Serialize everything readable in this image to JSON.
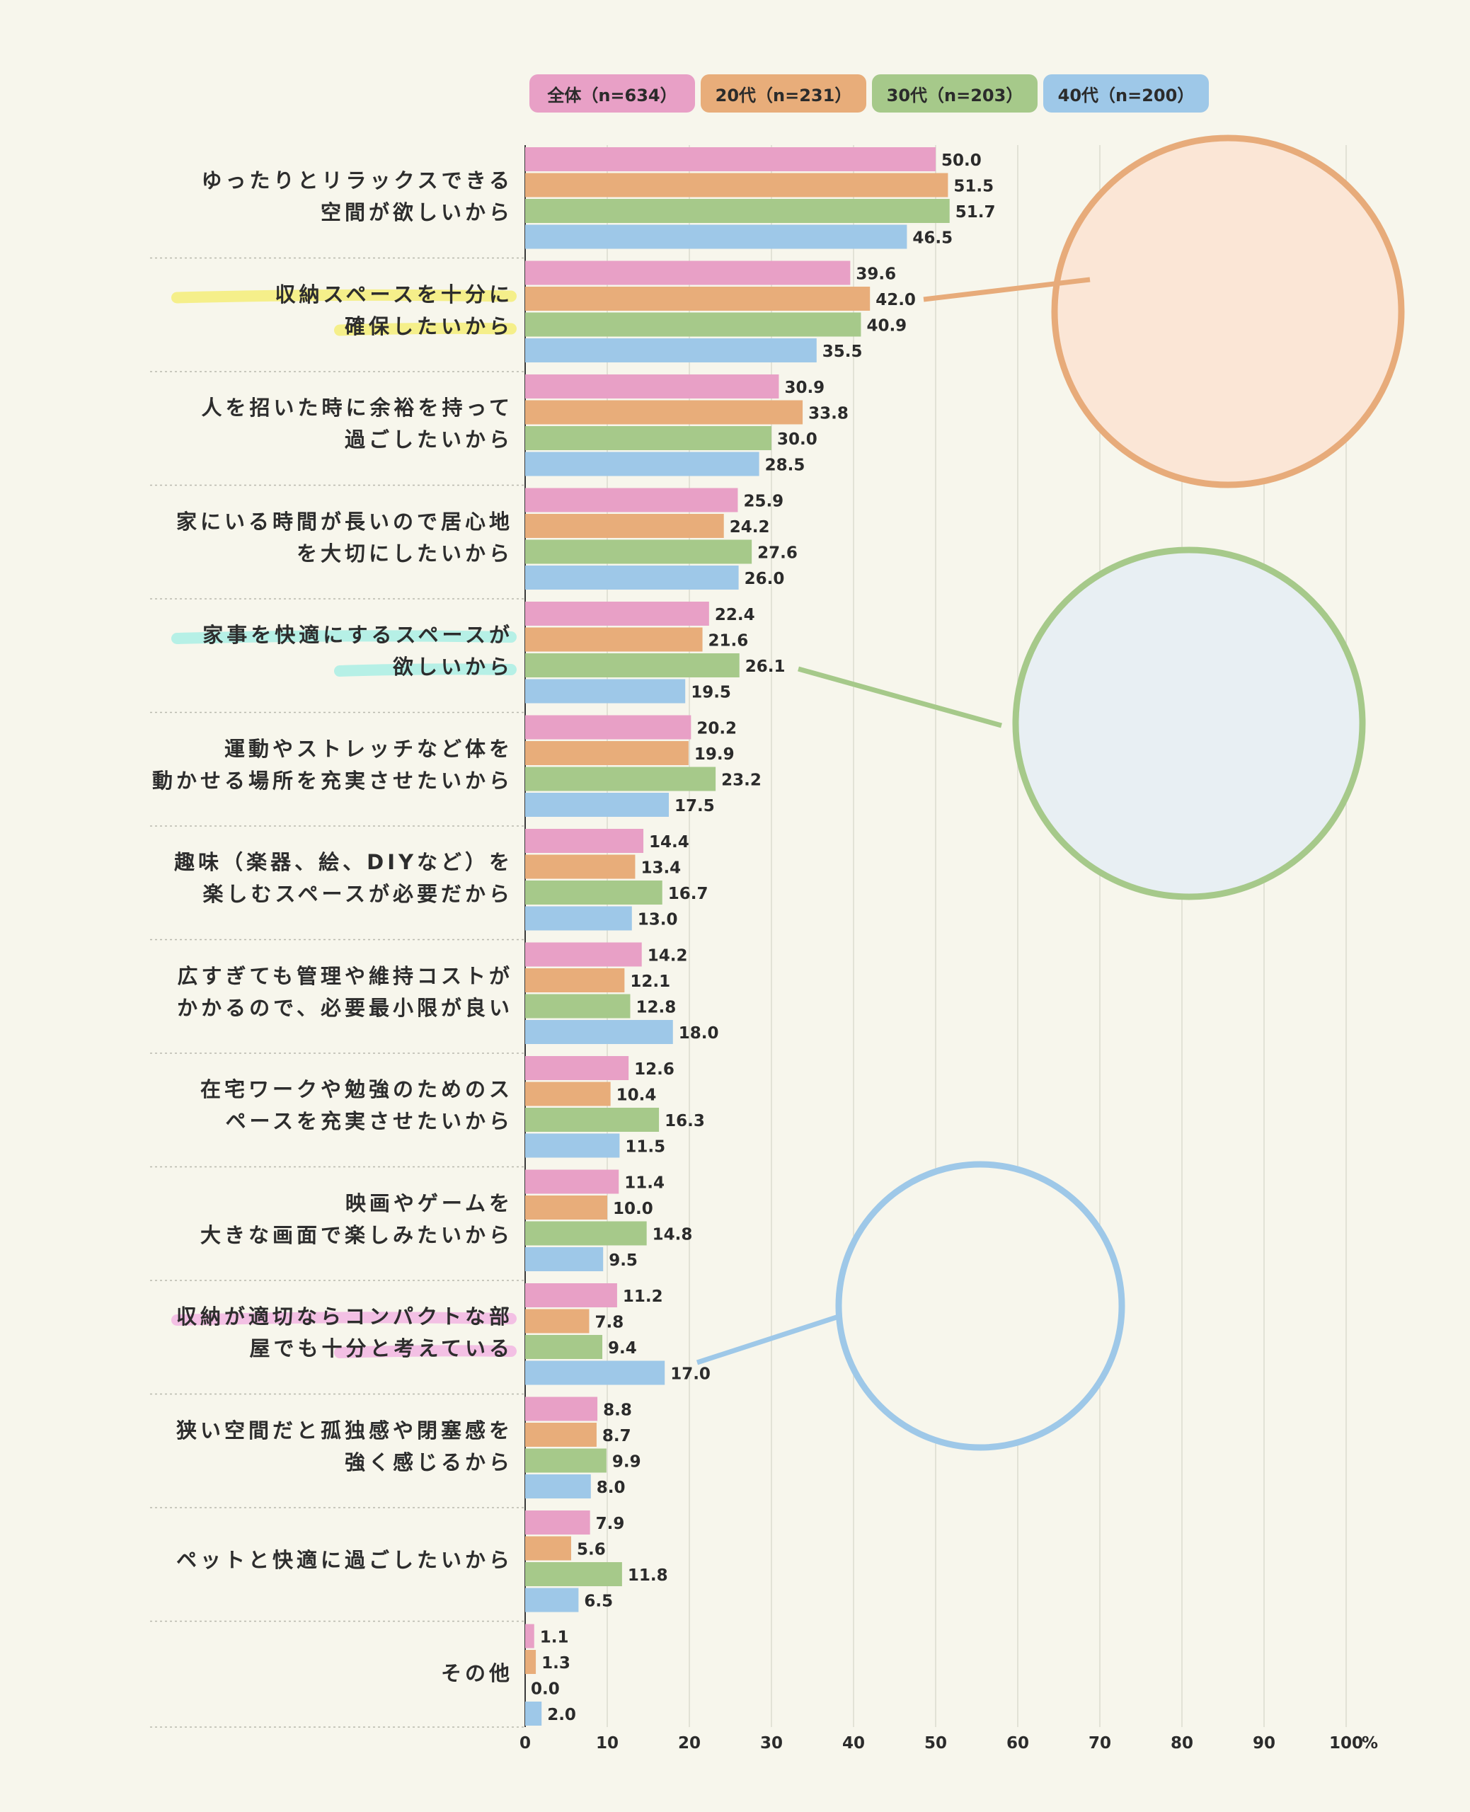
{
  "chart_data": {
    "type": "bar",
    "orientation": "horizontal",
    "unit": "%",
    "xlim": [
      0,
      100
    ],
    "xticks": [
      "0",
      "10",
      "20",
      "30",
      "40",
      "50",
      "60",
      "70",
      "80",
      "90",
      "100"
    ],
    "grid": true,
    "legend_position": "top",
    "categories": [
      "ゆったりとリラックスできる\n空間が欲しいから",
      "収納スペースを十分に\n確保したいから",
      "人を招いた時に余裕を持って\n過ごしたいから",
      "家にいる時間が長いので居心地\nを大切にしたいから",
      "家事を快適にするスペースが\n欲しいから",
      "運動やストレッチなど体を\n動かせる場所を充実させたいから",
      "趣味（楽器、絵、DIYなど）を\n楽しむスペースが必要だから",
      "広すぎても管理や維持コストが\nかかるので、必要最小限が良い",
      "在宅ワークや勉強のためのス\nペースを充実させたいから",
      "映画やゲームを\n大きな画面で楽しみたいから",
      "収納が適切ならコンパクトな部\n屋でも十分と考えている",
      "狭い空間だと孤独感や閉塞感を\n強く感じるから",
      "ペットと快適に過ごしたいから",
      "その他"
    ],
    "series": [
      {
        "name": "全体（n=634）",
        "color": "#e8a0c6",
        "values": [
          50.0,
          39.6,
          30.9,
          25.9,
          22.4,
          20.2,
          14.4,
          14.2,
          12.6,
          11.4,
          11.2,
          8.8,
          7.9,
          1.1
        ]
      },
      {
        "name": "20代（n=231）",
        "color": "#e8ad7a",
        "values": [
          51.5,
          42.0,
          33.8,
          24.2,
          21.6,
          19.9,
          13.4,
          12.1,
          10.4,
          10.0,
          7.8,
          8.7,
          5.6,
          1.3
        ]
      },
      {
        "name": "30代（n=203）",
        "color": "#a6c98a",
        "values": [
          51.7,
          40.9,
          30.0,
          27.6,
          26.1,
          23.2,
          16.7,
          12.8,
          16.3,
          14.8,
          9.4,
          9.9,
          11.8,
          0.0
        ]
      },
      {
        "name": "40代（n=200）",
        "color": "#9ec8e8",
        "values": [
          46.5,
          35.5,
          28.5,
          26.0,
          19.5,
          17.5,
          13.0,
          18.0,
          11.5,
          9.5,
          17.0,
          8.0,
          6.5,
          2.0
        ]
      }
    ],
    "highlighted_categories": [
      {
        "index": 1,
        "color": "#f5ef8a"
      },
      {
        "index": 4,
        "color": "#b6f0e6"
      },
      {
        "index": 10,
        "color": "#f3c0e4"
      }
    ]
  }
}
